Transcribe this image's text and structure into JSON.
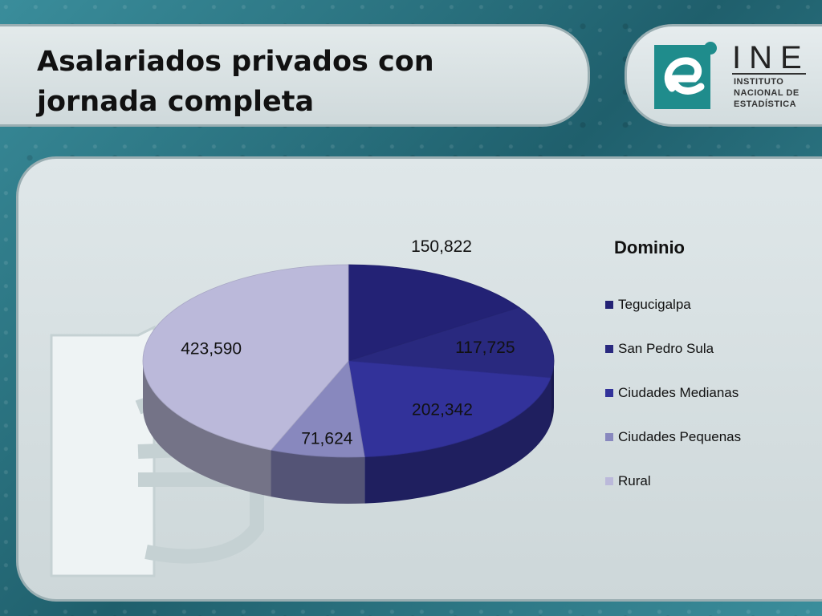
{
  "slide": {
    "title": "Asalariados privados con jornada completa"
  },
  "logo": {
    "mark_letter": "e",
    "name": "INE",
    "sub_lines": [
      "INSTITUTO",
      "NACIONAL DE",
      "ESTADÍSTICA"
    ]
  },
  "colors": {
    "background": "#2f7d8c",
    "logo_teal": "#1f8c8c"
  },
  "chart_data": {
    "type": "pie",
    "style": "3d",
    "legend_title": "Dominio",
    "legend_position": "right",
    "categories": [
      "Tegucigalpa",
      "San Pedro Sula",
      "Ciudades Medianas",
      "Ciudades Pequenas",
      "Rural"
    ],
    "values": [
      150822,
      117725,
      202342,
      71624,
      423590
    ],
    "labels": [
      "150,822",
      "117,725",
      "202,342",
      "71,624",
      "423,590"
    ],
    "colors": [
      "#232275",
      "#29297f",
      "#32329a",
      "#8888be",
      "#bbb9da"
    ]
  }
}
